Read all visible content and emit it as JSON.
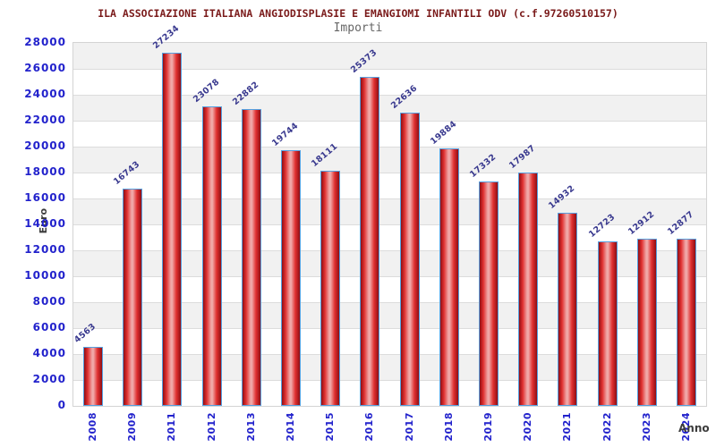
{
  "chart_data": {
    "type": "bar",
    "title": "ILA ASSOCIAZIONE ITALIANA ANGIODISPLASIE E EMANGIOMI INFANTILI ODV (c.f.97260510157)",
    "subtitle": "Importi",
    "xlabel": "Anno",
    "ylabel": "Euro",
    "categories": [
      "2008",
      "2009",
      "2011",
      "2012",
      "2013",
      "2014",
      "2015",
      "2016",
      "2017",
      "2018",
      "2019",
      "2020",
      "2021",
      "2022",
      "2023",
      "2024"
    ],
    "values": [
      4563,
      16743,
      27234,
      23078,
      22882,
      19744,
      18111,
      25373,
      22636,
      19884,
      17332,
      17987,
      14932,
      12723,
      12912,
      12877
    ],
    "ylim": [
      0,
      28000
    ],
    "ytick_step": 2000,
    "yticks": [
      0,
      2000,
      4000,
      6000,
      8000,
      10000,
      12000,
      14000,
      16000,
      18000,
      20000,
      22000,
      24000,
      26000,
      28000
    ],
    "grid": "horizontal-bands",
    "legend": null,
    "colors": {
      "title": "#7a1a1a",
      "subtitle": "#666666",
      "axis_label": "#3c3c3c",
      "tick_label": "#2222cc",
      "value_label": "#38388e",
      "bar_border": "#55a0e0",
      "bar_edge": "#8f0e14",
      "bar_main": "#e03030",
      "bar_highlight": "#f0a8a8",
      "band_gray": "#f1f1f1",
      "band_white": "#ffffff",
      "grid_line": "#dcdcdc",
      "plot_border": "#d4d4d4",
      "background": "#ffffff"
    }
  }
}
